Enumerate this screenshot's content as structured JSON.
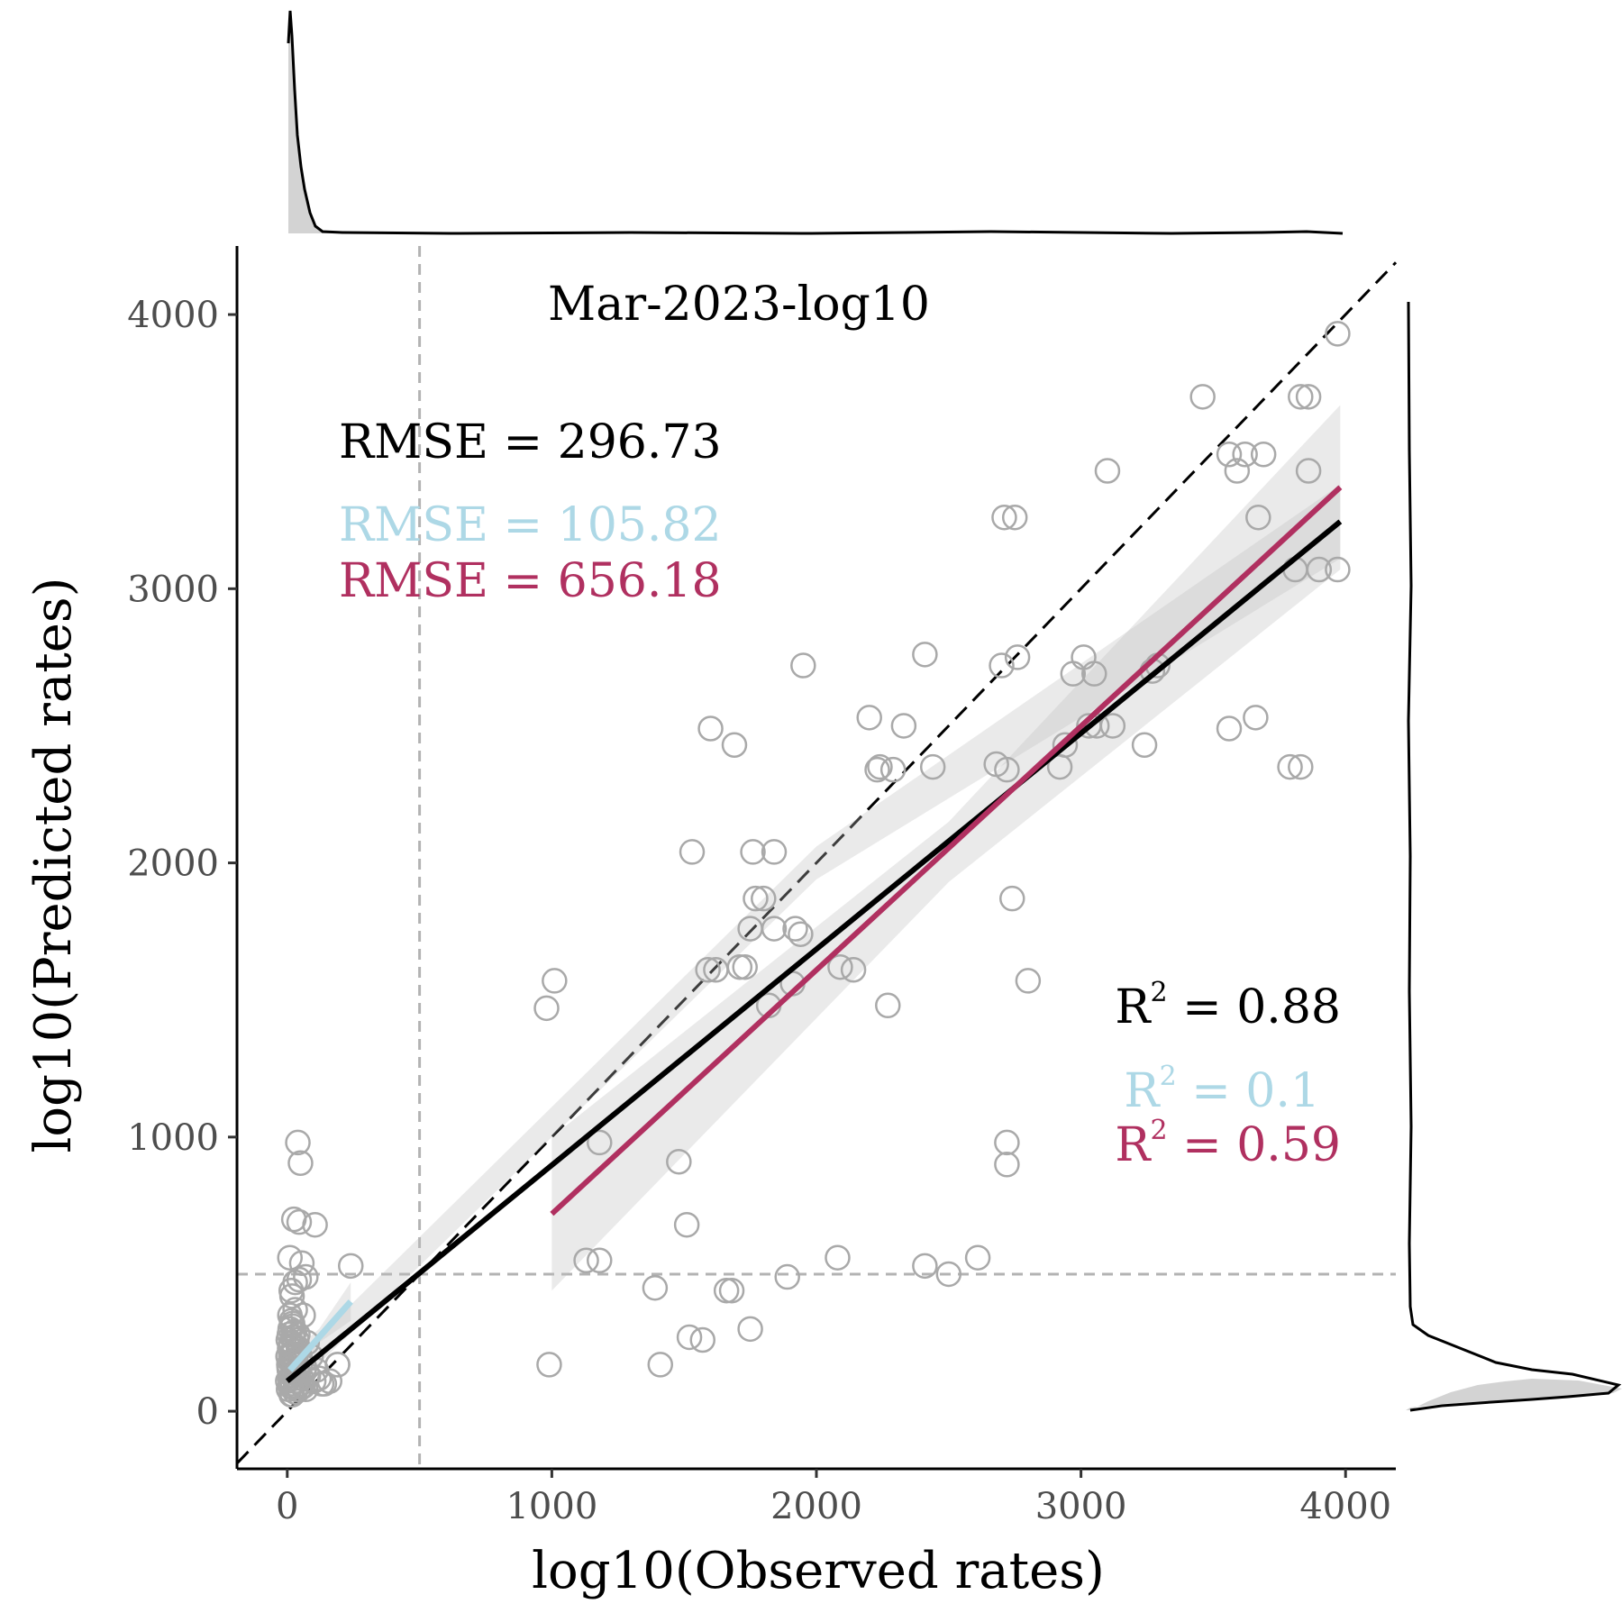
{
  "chart_data": {
    "type": "scatter",
    "title": "Mar-2023-log10",
    "xlabel": "log10(Observed rates)",
    "ylabel": "log10(Predicted rates)",
    "xlim": [
      -190,
      4190
    ],
    "ylim": [
      -210,
      4250
    ],
    "xticks": [
      0,
      1000,
      2000,
      3000,
      4000
    ],
    "yticks": [
      0,
      1000,
      2000,
      3000,
      4000
    ],
    "grid": false,
    "legend": "none",
    "reference_line": {
      "style": "dashed",
      "color": "#000000",
      "from": [
        -190,
        -190
      ],
      "to": [
        4190,
        4190
      ]
    },
    "threshold_lines": {
      "x": 500,
      "y": 500,
      "color": "#b3b3b3",
      "style": "dashed"
    },
    "annotations": {
      "rmse_all": {
        "text": "RMSE = 296.73",
        "color": "#000000"
      },
      "rmse_low": {
        "text": "RMSE = 105.82",
        "color": "#add8e6"
      },
      "rmse_high": {
        "text": "RMSE = 656.18",
        "color": "#b03060"
      },
      "r2_all": {
        "prefix": "R",
        "sup": "2",
        "suffix": " = 0.88",
        "color": "#000000"
      },
      "r2_low": {
        "prefix": "R",
        "sup": "2",
        "suffix": " = 0.1",
        "color": "#add8e6"
      },
      "r2_high": {
        "prefix": "R",
        "sup": "2",
        "suffix": " = 0.59",
        "color": "#b03060"
      }
    },
    "fit_lines": [
      {
        "subset": "all",
        "color": "#000000",
        "x": [
          0,
          3980
        ],
        "y": [
          110,
          3245
        ],
        "ci": [
          [
            0,
            60,
            160
          ],
          [
            2000,
            1940,
            2060
          ],
          [
            3980,
            3110,
            3380
          ]
        ]
      },
      {
        "subset": "low",
        "color": "#add8e6",
        "x": [
          10,
          240
        ],
        "y": [
          150,
          400
        ],
        "ci": [
          [
            10,
            90,
            210
          ],
          [
            120,
            250,
            300
          ],
          [
            240,
            330,
            470
          ]
        ]
      },
      {
        "subset": "high",
        "color": "#b03060",
        "x": [
          1000,
          3980
        ],
        "y": [
          720,
          3370
        ],
        "ci": [
          [
            1000,
            440,
            1000
          ],
          [
            2500,
            1930,
            2150
          ],
          [
            3980,
            3070,
            3670
          ]
        ]
      }
    ],
    "points": [
      [
        5,
        80
      ],
      [
        10,
        120
      ],
      [
        15,
        60
      ],
      [
        8,
        150
      ],
      [
        20,
        100
      ],
      [
        3,
        200
      ],
      [
        12,
        90
      ],
      [
        25,
        140
      ],
      [
        6,
        170
      ],
      [
        18,
        210
      ],
      [
        30,
        70
      ],
      [
        9,
        230
      ],
      [
        14,
        250
      ],
      [
        22,
        180
      ],
      [
        4,
        260
      ],
      [
        28,
        120
      ],
      [
        35,
        90
      ],
      [
        11,
        300
      ],
      [
        16,
        330
      ],
      [
        40,
        110
      ],
      [
        7,
        160
      ],
      [
        21,
        270
      ],
      [
        13,
        200
      ],
      [
        45,
        80
      ],
      [
        26,
        240
      ],
      [
        2,
        110
      ],
      [
        32,
        190
      ],
      [
        19,
        60
      ],
      [
        38,
        150
      ],
      [
        8,
        280
      ],
      [
        50,
        100
      ],
      [
        24,
        220
      ],
      [
        17,
        130
      ],
      [
        60,
        90
      ],
      [
        29,
        170
      ],
      [
        10,
        350
      ],
      [
        44,
        140
      ],
      [
        15,
        100
      ],
      [
        55,
        120
      ],
      [
        36,
        260
      ],
      [
        12,
        180
      ],
      [
        70,
        80
      ],
      [
        23,
        150
      ],
      [
        48,
        200
      ],
      [
        31,
        110
      ],
      [
        80,
        130
      ],
      [
        27,
        290
      ],
      [
        100,
        110
      ],
      [
        14,
        90
      ],
      [
        65,
        160
      ],
      [
        130,
        100
      ],
      [
        20,
        310
      ],
      [
        42,
        230
      ],
      [
        160,
        110
      ],
      [
        52,
        180
      ],
      [
        33,
        80
      ],
      [
        90,
        200
      ],
      [
        110,
        150
      ],
      [
        190,
        170
      ],
      [
        75,
        250
      ],
      [
        40,
        980
      ],
      [
        50,
        905
      ],
      [
        25,
        700
      ],
      [
        45,
        690
      ],
      [
        105,
        680
      ],
      [
        10,
        560
      ],
      [
        55,
        540
      ],
      [
        70,
        490
      ],
      [
        30,
        470
      ],
      [
        15,
        440
      ],
      [
        45,
        480
      ],
      [
        240,
        530
      ],
      [
        60,
        350
      ],
      [
        30,
        370
      ],
      [
        20,
        320
      ],
      [
        40,
        280
      ],
      [
        18,
        420
      ],
      [
        190,
        170
      ],
      [
        140,
        100
      ],
      [
        120,
        120
      ],
      [
        980,
        1470
      ],
      [
        1010,
        1570
      ],
      [
        1180,
        980
      ],
      [
        1130,
        550
      ],
      [
        1180,
        550
      ],
      [
        1390,
        450
      ],
      [
        1410,
        170
      ],
      [
        990,
        170
      ],
      [
        1480,
        910
      ],
      [
        1510,
        680
      ],
      [
        1530,
        2040
      ],
      [
        1520,
        270
      ],
      [
        1570,
        260
      ],
      [
        1590,
        1610
      ],
      [
        1620,
        1610
      ],
      [
        1600,
        2490
      ],
      [
        1690,
        2430
      ],
      [
        1660,
        440
      ],
      [
        1680,
        440
      ],
      [
        1750,
        300
      ],
      [
        1710,
        1620
      ],
      [
        1730,
        1620
      ],
      [
        1750,
        1760
      ],
      [
        1760,
        2040
      ],
      [
        1770,
        1870
      ],
      [
        1800,
        1870
      ],
      [
        1820,
        1480
      ],
      [
        1840,
        1760
      ],
      [
        1840,
        2040
      ],
      [
        1890,
        490
      ],
      [
        1910,
        1560
      ],
      [
        1920,
        1760
      ],
      [
        1940,
        1740
      ],
      [
        1950,
        2720
      ],
      [
        2080,
        560
      ],
      [
        2090,
        1620
      ],
      [
        2140,
        1610
      ],
      [
        2200,
        2530
      ],
      [
        2230,
        2340
      ],
      [
        2240,
        2350
      ],
      [
        2270,
        1480
      ],
      [
        2290,
        2340
      ],
      [
        2330,
        2500
      ],
      [
        2410,
        2760
      ],
      [
        2410,
        530
      ],
      [
        2440,
        2350
      ],
      [
        2500,
        500
      ],
      [
        2610,
        560
      ],
      [
        2680,
        2360
      ],
      [
        2700,
        2720
      ],
      [
        2710,
        3260
      ],
      [
        2720,
        2340
      ],
      [
        2720,
        980
      ],
      [
        2720,
        900
      ],
      [
        2740,
        1870
      ],
      [
        2750,
        3260
      ],
      [
        2760,
        2750
      ],
      [
        2800,
        1570
      ],
      [
        2920,
        2350
      ],
      [
        2940,
        2430
      ],
      [
        2970,
        2690
      ],
      [
        3010,
        2750
      ],
      [
        3030,
        2500
      ],
      [
        3050,
        2690
      ],
      [
        3060,
        2500
      ],
      [
        3100,
        3430
      ],
      [
        3120,
        2500
      ],
      [
        3240,
        2430
      ],
      [
        3270,
        2700
      ],
      [
        3290,
        2720
      ],
      [
        3460,
        3700
      ],
      [
        3560,
        3490
      ],
      [
        3560,
        2490
      ],
      [
        3590,
        3430
      ],
      [
        3620,
        3490
      ],
      [
        3660,
        2530
      ],
      [
        3670,
        3260
      ],
      [
        3690,
        3490
      ],
      [
        3790,
        2350
      ],
      [
        3810,
        3070
      ],
      [
        3830,
        2350
      ],
      [
        3830,
        3700
      ],
      [
        3860,
        3700
      ],
      [
        3860,
        3430
      ],
      [
        3900,
        3070
      ],
      [
        3970,
        3930
      ],
      [
        3970,
        3070
      ]
    ]
  }
}
